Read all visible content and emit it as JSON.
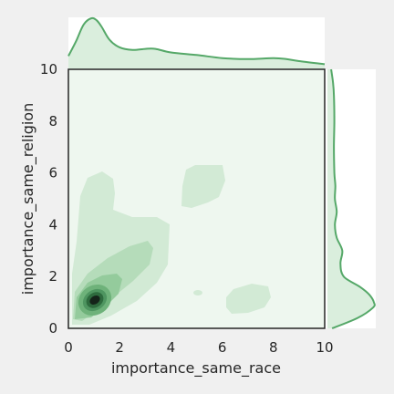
{
  "chart_data": {
    "type": "kde-jointplot",
    "xlabel": "importance_same_race",
    "ylabel": "importance_same_religion",
    "xlim": [
      0,
      10
    ],
    "ylim": [
      0,
      10
    ],
    "xticks": [
      "0",
      "2",
      "4",
      "6",
      "8",
      "10"
    ],
    "yticks": [
      "0",
      "2",
      "4",
      "6",
      "8",
      "10"
    ],
    "grid": false,
    "colors": {
      "accent": "#55a868",
      "joint_bg": "#eef7ef",
      "marginal_bg": "#ffffff",
      "page_bg": "#f0f0f0",
      "peak": "#1a1a1a"
    },
    "density_peaks": [
      {
        "x": 1.0,
        "y": 1.1,
        "strength": "high"
      },
      {
        "x": 2.6,
        "y": 3.0,
        "strength": "low"
      },
      {
        "x": 5.5,
        "y": 5.6,
        "strength": "low"
      },
      {
        "x": 7.8,
        "y": 1.1,
        "strength": "low"
      },
      {
        "x": 5.0,
        "y": 1.4,
        "strength": "low"
      }
    ],
    "marginal_x": {
      "x": [
        0,
        0.3,
        0.6,
        0.9,
        1.1,
        1.3,
        1.6,
        2.0,
        2.5,
        3.0,
        3.4,
        4.0,
        5.0,
        6.0,
        7.0,
        8.0,
        8.5,
        9.0,
        10.0
      ],
      "density": [
        0.26,
        0.55,
        0.88,
        1.0,
        0.96,
        0.83,
        0.58,
        0.43,
        0.38,
        0.4,
        0.4,
        0.33,
        0.28,
        0.22,
        0.2,
        0.22,
        0.2,
        0.16,
        0.1
      ]
    },
    "marginal_y": {
      "y": [
        0,
        0.4,
        0.8,
        1.0,
        1.3,
        1.6,
        2.0,
        2.5,
        3.0,
        3.5,
        4.0,
        4.5,
        5.0,
        5.5,
        6.0,
        7.0,
        8.0,
        9.0,
        9.5,
        10.0
      ],
      "density": [
        0.1,
        0.65,
        0.98,
        1.0,
        0.9,
        0.7,
        0.35,
        0.28,
        0.32,
        0.2,
        0.16,
        0.2,
        0.16,
        0.17,
        0.15,
        0.14,
        0.15,
        0.14,
        0.12,
        0.08
      ]
    }
  }
}
